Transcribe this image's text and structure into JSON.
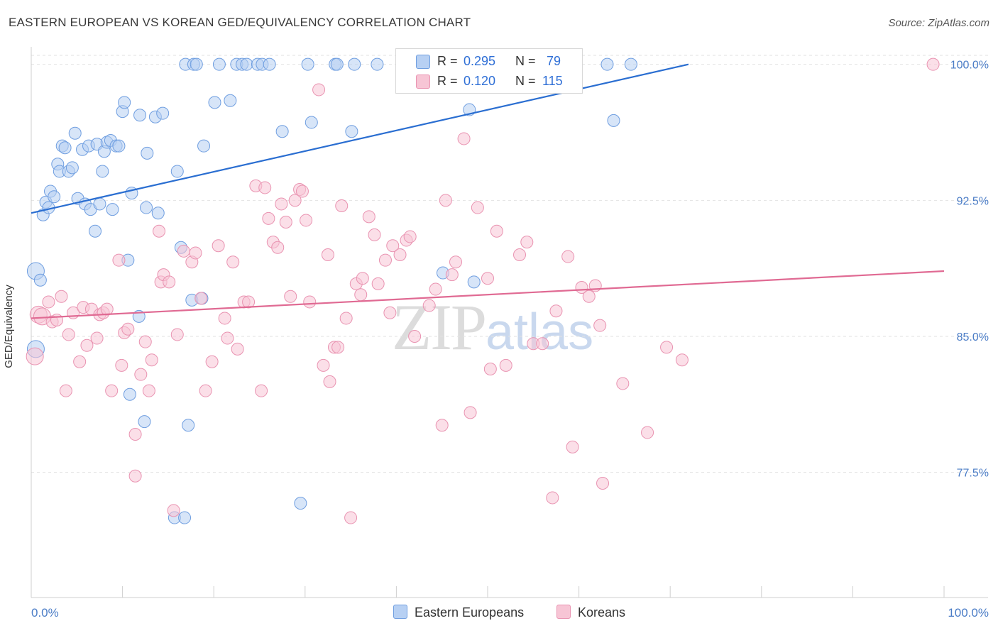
{
  "title": "EASTERN EUROPEAN VS KOREAN GED/EQUIVALENCY CORRELATION CHART",
  "source": "Source: ZipAtlas.com",
  "watermark": {
    "zip": "ZIP",
    "atlas": "atlas"
  },
  "colors": {
    "blue_fill": "#b7d0f3",
    "blue_stroke": "#6f9ee0",
    "blue_line": "#2a6ed1",
    "pink_fill": "#f7c5d5",
    "pink_stroke": "#e993b1",
    "pink_line": "#e06a93",
    "tick_text": "#4a7cc6",
    "grid": "#e2e2e2"
  },
  "legend": {
    "rows": [
      {
        "r_label": "R =",
        "r_value": "0.295",
        "n_label": "N =",
        "n_value": "79"
      },
      {
        "r_label": "R =",
        "r_value": "0.120",
        "n_label": "N =",
        "n_value": "115"
      }
    ]
  },
  "bottom_legend": [
    "Eastern Europeans",
    "Koreans"
  ],
  "chart_data": {
    "type": "scatter",
    "title": "EASTERN EUROPEAN VS KOREAN GED/EQUIVALENCY CORRELATION CHART",
    "ylabel": "GED/Equivalency",
    "xlabel": "",
    "xlim": [
      0,
      100
    ],
    "ylim": [
      70.6,
      101.2
    ],
    "x_tick_labels": [
      "0.0%",
      "100.0%"
    ],
    "y_ticks": [
      77.5,
      85.0,
      92.5,
      100.0
    ],
    "y_tick_labels": [
      "77.5%",
      "85.0%",
      "92.5%",
      "100.0%"
    ],
    "grid": "horizontal dashed",
    "legend_position": "top-center",
    "series": [
      {
        "name": "Eastern Europeans",
        "R": 0.295,
        "N": 79,
        "trend": {
          "x": [
            0,
            72
          ],
          "y": [
            91.8,
            100.0
          ]
        },
        "points": [
          [
            0.5,
            84.3
          ],
          [
            0.5,
            88.6
          ],
          [
            1,
            88.1
          ],
          [
            1.3,
            91.7
          ],
          [
            1.6,
            92.4
          ],
          [
            1.9,
            92.1
          ],
          [
            2.1,
            93.0
          ],
          [
            2.5,
            92.7
          ],
          [
            2.9,
            94.5
          ],
          [
            3.1,
            94.1
          ],
          [
            3.4,
            95.5
          ],
          [
            3.7,
            95.4
          ],
          [
            4.1,
            94.1
          ],
          [
            4.5,
            94.3
          ],
          [
            4.8,
            96.2
          ],
          [
            5.1,
            92.6
          ],
          [
            5.6,
            95.3
          ],
          [
            5.9,
            92.3
          ],
          [
            6.3,
            95.5
          ],
          [
            6.5,
            92.0
          ],
          [
            7.0,
            90.8
          ],
          [
            7.2,
            95.6
          ],
          [
            7.5,
            92.3
          ],
          [
            7.8,
            94.1
          ],
          [
            8.0,
            95.2
          ],
          [
            8.3,
            95.7
          ],
          [
            8.7,
            95.8
          ],
          [
            8.9,
            92.0
          ],
          [
            9.3,
            95.5
          ],
          [
            9.6,
            95.5
          ],
          [
            10.0,
            97.4
          ],
          [
            10.2,
            97.9
          ],
          [
            10.6,
            89.2
          ],
          [
            10.8,
            81.8
          ],
          [
            11.0,
            92.9
          ],
          [
            11.8,
            86.1
          ],
          [
            11.9,
            97.2
          ],
          [
            12.4,
            80.3
          ],
          [
            12.6,
            92.1
          ],
          [
            12.7,
            95.1
          ],
          [
            13.6,
            97.1
          ],
          [
            13.9,
            91.8
          ],
          [
            14.4,
            97.3
          ],
          [
            15.7,
            75.0
          ],
          [
            16.0,
            94.1
          ],
          [
            16.4,
            89.9
          ],
          [
            16.8,
            75.0
          ],
          [
            16.9,
            100
          ],
          [
            17.2,
            80.1
          ],
          [
            17.6,
            87.0
          ],
          [
            17.8,
            100
          ],
          [
            18.1,
            100
          ],
          [
            18.7,
            87.1
          ],
          [
            18.9,
            95.5
          ],
          [
            20.1,
            97.9
          ],
          [
            20.6,
            100
          ],
          [
            21.8,
            98.0
          ],
          [
            22.5,
            100
          ],
          [
            23.1,
            100
          ],
          [
            23.6,
            100
          ],
          [
            24.8,
            100
          ],
          [
            25.3,
            100
          ],
          [
            26.1,
            100
          ],
          [
            27.5,
            96.3
          ],
          [
            29.5,
            75.8
          ],
          [
            30.3,
            100
          ],
          [
            30.7,
            96.8
          ],
          [
            33.3,
            100
          ],
          [
            33.5,
            100
          ],
          [
            35.1,
            96.3
          ],
          [
            35.4,
            100
          ],
          [
            37.9,
            100
          ],
          [
            45.1,
            88.5
          ],
          [
            48.5,
            88.0
          ],
          [
            50.5,
            100
          ],
          [
            63.1,
            100
          ],
          [
            63.8,
            96.9
          ],
          [
            65.7,
            100
          ],
          [
            48.0,
            97.5
          ]
        ]
      },
      {
        "name": "Koreans",
        "R": 0.12,
        "N": 115,
        "trend": {
          "x": [
            0,
            100
          ],
          "y": [
            86.0,
            88.6
          ]
        },
        "points": [
          [
            0.4,
            83.9
          ],
          [
            0.8,
            86.2
          ],
          [
            1.2,
            86.1
          ],
          [
            1.9,
            86.9
          ],
          [
            2.3,
            85.8
          ],
          [
            2.8,
            85.9
          ],
          [
            3.3,
            87.2
          ],
          [
            3.8,
            82.0
          ],
          [
            4.1,
            85.1
          ],
          [
            4.6,
            86.3
          ],
          [
            5.3,
            83.6
          ],
          [
            5.7,
            86.6
          ],
          [
            6.1,
            84.5
          ],
          [
            6.6,
            86.5
          ],
          [
            7.2,
            84.9
          ],
          [
            7.5,
            86.2
          ],
          [
            7.9,
            86.3
          ],
          [
            8.3,
            86.5
          ],
          [
            8.8,
            82.0
          ],
          [
            9.6,
            89.2
          ],
          [
            9.9,
            83.4
          ],
          [
            10.2,
            85.2
          ],
          [
            10.6,
            85.4
          ],
          [
            11.4,
            79.6
          ],
          [
            11.4,
            77.3
          ],
          [
            12.0,
            82.9
          ],
          [
            12.5,
            84.7
          ],
          [
            12.9,
            82.0
          ],
          [
            13.2,
            83.7
          ],
          [
            14.0,
            90.8
          ],
          [
            14.2,
            88.0
          ],
          [
            14.5,
            88.4
          ],
          [
            15.1,
            88.0
          ],
          [
            15.6,
            75.4
          ],
          [
            16.0,
            85.1
          ],
          [
            16.7,
            89.7
          ],
          [
            17.6,
            89.1
          ],
          [
            18.0,
            89.6
          ],
          [
            18.6,
            87.1
          ],
          [
            19.1,
            82.0
          ],
          [
            19.8,
            83.6
          ],
          [
            20.5,
            90.0
          ],
          [
            21.2,
            86.0
          ],
          [
            21.5,
            84.9
          ],
          [
            22.1,
            89.1
          ],
          [
            22.6,
            84.3
          ],
          [
            23.3,
            86.9
          ],
          [
            23.8,
            86.9
          ],
          [
            24.6,
            93.3
          ],
          [
            25.2,
            82.0
          ],
          [
            25.6,
            93.2
          ],
          [
            26.0,
            91.5
          ],
          [
            26.5,
            90.2
          ],
          [
            27.0,
            89.9
          ],
          [
            27.4,
            92.3
          ],
          [
            27.9,
            91.3
          ],
          [
            28.4,
            87.2
          ],
          [
            28.9,
            92.5
          ],
          [
            29.4,
            93.1
          ],
          [
            29.7,
            93.0
          ],
          [
            30.1,
            91.4
          ],
          [
            30.5,
            86.9
          ],
          [
            31.5,
            98.6
          ],
          [
            32.0,
            83.4
          ],
          [
            32.5,
            89.5
          ],
          [
            32.7,
            82.5
          ],
          [
            33.2,
            84.4
          ],
          [
            33.6,
            84.4
          ],
          [
            34.0,
            92.2
          ],
          [
            34.5,
            86.0
          ],
          [
            35.0,
            75.0
          ],
          [
            35.6,
            87.9
          ],
          [
            36.1,
            87.3
          ],
          [
            36.3,
            88.2
          ],
          [
            37.0,
            91.6
          ],
          [
            37.6,
            90.6
          ],
          [
            38.0,
            87.9
          ],
          [
            38.8,
            89.2
          ],
          [
            39.3,
            86.3
          ],
          [
            39.6,
            90.0
          ],
          [
            40.4,
            89.5
          ],
          [
            41.1,
            90.3
          ],
          [
            41.5,
            90.5
          ],
          [
            42.0,
            85.0
          ],
          [
            43.6,
            86.7
          ],
          [
            44.3,
            87.6
          ],
          [
            45.0,
            80.1
          ],
          [
            45.4,
            92.5
          ],
          [
            46.1,
            88.4
          ],
          [
            46.5,
            89.1
          ],
          [
            47.4,
            95.9
          ],
          [
            48.1,
            80.8
          ],
          [
            48.9,
            92.1
          ],
          [
            50.0,
            88.2
          ],
          [
            50.3,
            83.2
          ],
          [
            51.0,
            90.8
          ],
          [
            52.0,
            83.4
          ],
          [
            53.5,
            89.5
          ],
          [
            54.3,
            90.2
          ],
          [
            55.0,
            84.6
          ],
          [
            56.0,
            84.6
          ],
          [
            57.1,
            76.1
          ],
          [
            57.5,
            86.4
          ],
          [
            58.8,
            89.4
          ],
          [
            59.3,
            78.9
          ],
          [
            60.3,
            87.7
          ],
          [
            61.1,
            87.2
          ],
          [
            61.8,
            87.8
          ],
          [
            62.3,
            85.6
          ],
          [
            62.6,
            76.9
          ],
          [
            64.8,
            82.4
          ],
          [
            67.5,
            79.7
          ],
          [
            69.6,
            84.4
          ],
          [
            71.3,
            83.7
          ],
          [
            98.8,
            100
          ]
        ]
      }
    ]
  }
}
